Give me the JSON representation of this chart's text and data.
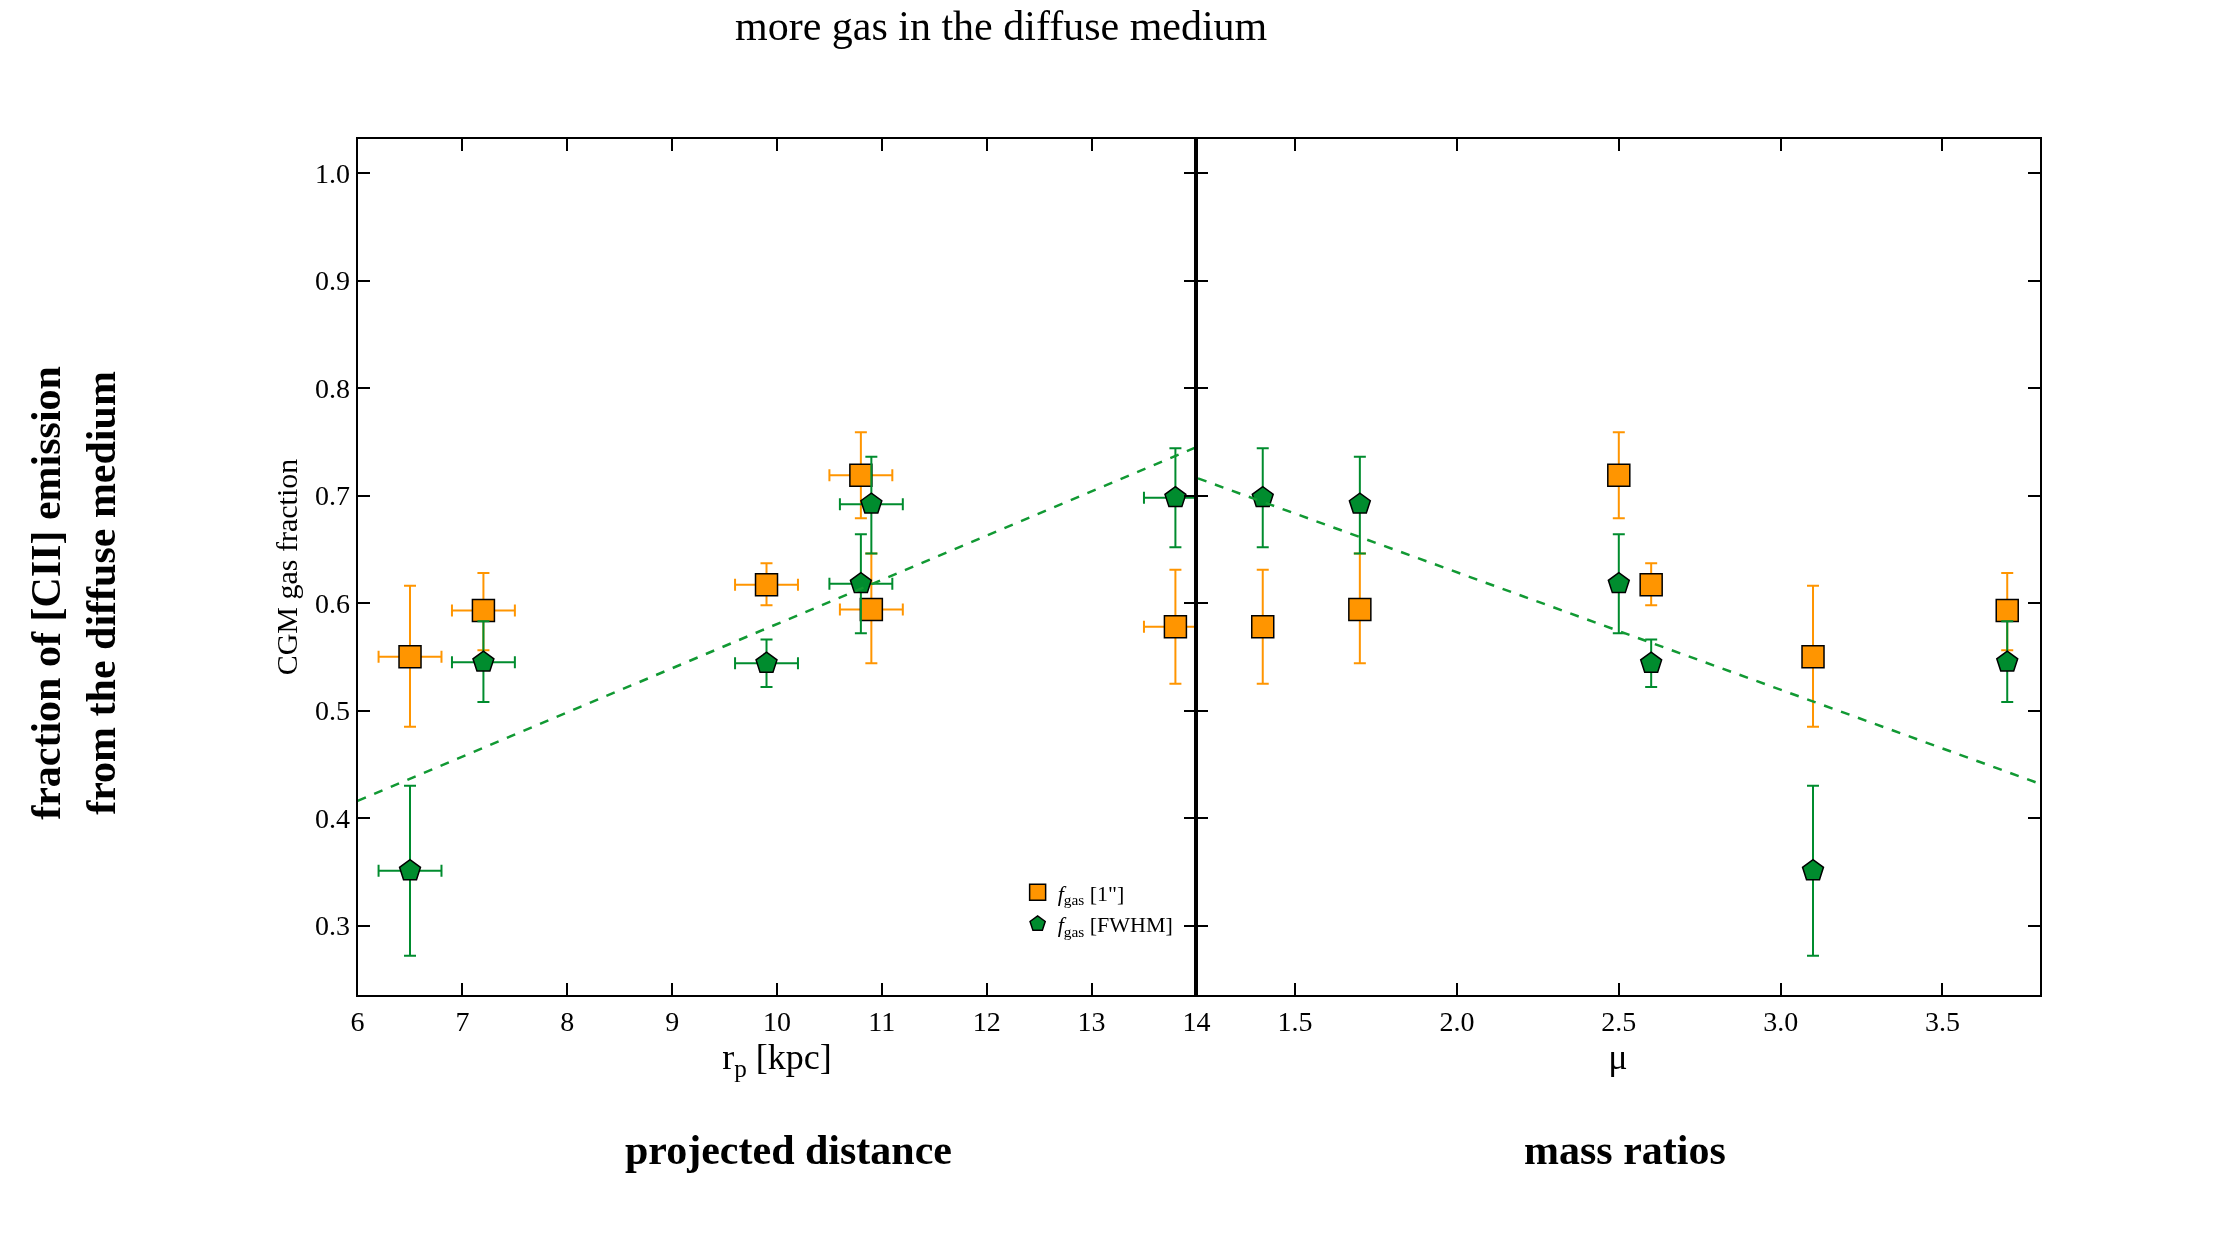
{
  "chart_data": [
    {
      "type": "scatter",
      "title": "more gas in the diffuse medium",
      "xlabel": "r$_{p}$ [kpc]",
      "ylabel": "CGM gas fraction",
      "annotations": [
        "fraction of [CII] emission\nfrom the diffuse medium",
        "projected distance"
      ],
      "xlim": [
        6,
        14
      ],
      "ylim": [
        0.235,
        1.032
      ],
      "xticks": [
        6,
        7,
        8,
        9,
        10,
        11,
        12,
        13,
        14
      ],
      "yticks": [
        0.3,
        0.4,
        0.5,
        0.6,
        0.7,
        0.8,
        0.9,
        {
          "value": 1.0,
          "label": "1.0"
        }
      ],
      "legend": "bottom right",
      "series": [
        {
          "name": "f$_{gas}$ [1\"]",
          "color": "#ff9500",
          "marker": "square",
          "x": [
            6.5,
            7.2,
            9.9,
            10.8,
            10.9,
            13.8
          ],
          "values": [
            0.55,
            0.593,
            0.617,
            0.719,
            0.594,
            0.578
          ],
          "errors": [
            [
              0.485,
              0.616
            ],
            [
              0.556,
              0.628
            ],
            [
              0.598,
              0.637
            ],
            [
              0.679,
              0.759
            ],
            [
              0.544,
              0.646
            ],
            [
              0.525,
              0.631
            ]
          ],
          "xerrors": [
            0.3,
            0.3,
            0.3,
            0.3,
            0.3,
            0.3
          ]
        },
        {
          "name": "f$_{gas}$ [FWHM]",
          "color": "#008c2e",
          "x": [
            6.5,
            7.2,
            9.9,
            10.8,
            10.9,
            13.8
          ],
          "values": [
            0.351,
            0.545,
            0.544,
            0.618,
            0.692,
            0.698
          ],
          "errors": [
            [
              0.272,
              0.43
            ],
            [
              0.508,
              0.583
            ],
            [
              0.522,
              0.566
            ],
            [
              0.572,
              0.664
            ],
            [
              0.646,
              0.736
            ],
            [
              0.652,
              0.744
            ]
          ],
          "xerrors": [
            0.3,
            0.3,
            0.3,
            0.3,
            0.3,
            0.3
          ]
        },
        {
          "type": "line",
          "color": "#119933",
          "line_style": "dashed",
          "marker": "none",
          "x": [
            6,
            14
          ],
          "values": [
            0.416,
            0.745
          ]
        }
      ]
    },
    {
      "type": "scatter",
      "xlabel": "μ",
      "annotations": [
        "mass ratios"
      ],
      "xlim": [
        1.195,
        3.8
      ],
      "ylim": [
        0.235,
        1.032
      ],
      "xticks": [
        1.5,
        {
          "value": 2.0,
          "label": "2.0"
        },
        2.5,
        {
          "value": 3.0,
          "label": "3.0"
        },
        3.5
      ],
      "yticks": [
        {
          "value": 0.3,
          "label": null
        },
        {
          "value": 0.4,
          "label": null
        },
        {
          "value": 0.5,
          "label": null
        },
        {
          "value": 0.6,
          "label": null
        },
        {
          "value": 0.7,
          "label": null
        },
        {
          "value": 0.8,
          "label": null
        },
        {
          "value": 0.9,
          "label": null
        },
        {
          "value": 1.0,
          "label": null
        }
      ],
      "tick_labels": "x",
      "series": [
        {
          "color": "#ff9500",
          "marker": "square",
          "x": [
            1.4,
            1.7,
            2.5,
            2.6,
            3.1,
            3.7
          ],
          "values": [
            0.578,
            0.594,
            0.719,
            0.617,
            0.55,
            0.593
          ],
          "errors": [
            [
              0.525,
              0.631
            ],
            [
              0.544,
              0.646
            ],
            [
              0.679,
              0.759
            ],
            [
              0.598,
              0.637
            ],
            [
              0.485,
              0.616
            ],
            [
              0.556,
              0.628
            ]
          ]
        },
        {
          "color": "#008c2e",
          "x": [
            1.4,
            1.7,
            2.5,
            2.6,
            3.1,
            3.7
          ],
          "values": [
            0.698,
            0.692,
            0.618,
            0.544,
            0.351,
            0.545
          ],
          "errors": [
            [
              0.652,
              0.744
            ],
            [
              0.646,
              0.736
            ],
            [
              0.572,
              0.664
            ],
            [
              0.522,
              0.566
            ],
            [
              0.272,
              0.43
            ],
            [
              0.508,
              0.583
            ]
          ]
        },
        {
          "type": "line",
          "color": "#119933",
          "line_style": "dashed",
          "marker": "none",
          "x": [
            1.2,
            3.8
          ],
          "values": [
            0.716,
            0.432
          ]
        }
      ]
    }
  ]
}
